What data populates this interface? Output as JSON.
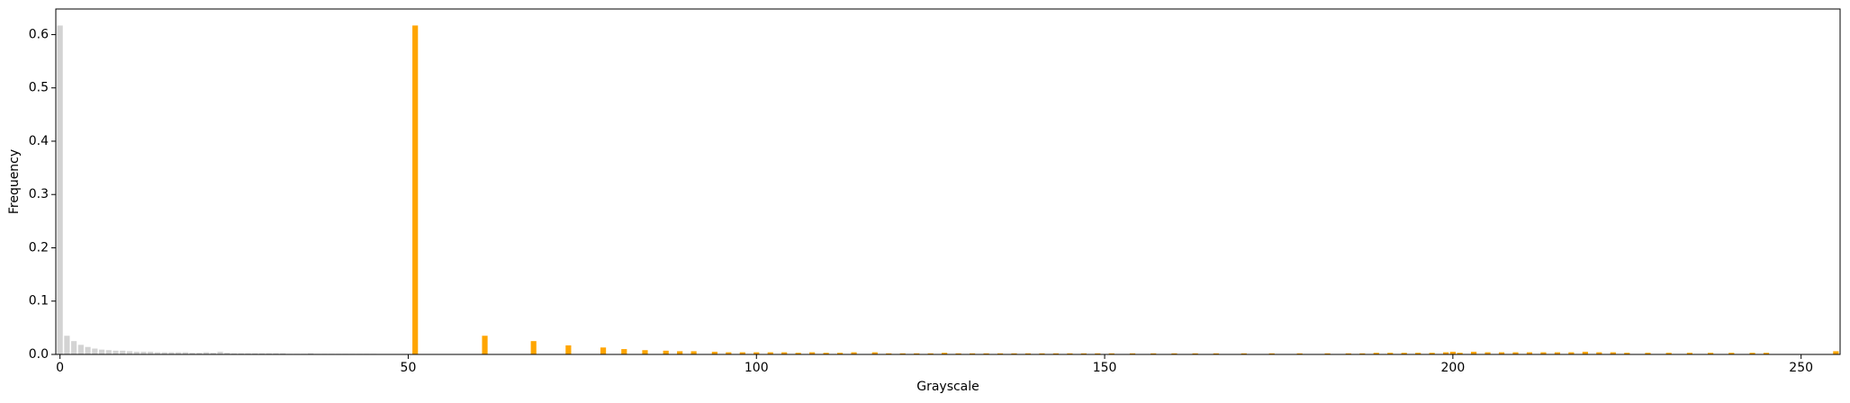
{
  "chart_data": {
    "type": "bar",
    "xlabel": "Grayscale",
    "ylabel": "Frequency",
    "xlim": [
      -0.6,
      255.6
    ],
    "ylim": [
      0,
      0.648
    ],
    "xticks": [
      0,
      50,
      100,
      150,
      200,
      250
    ],
    "yticks": [
      {
        "value": 0,
        "label": "0.0"
      },
      0.1,
      0.2,
      0.3,
      0.4,
      0.5,
      0.6
    ],
    "grid": false,
    "series": [
      {
        "color": "#d3d3d3",
        "x": [
          0,
          1,
          2,
          3,
          4,
          5,
          6,
          7,
          8,
          9,
          10,
          11,
          12,
          13,
          14,
          15,
          16,
          17,
          18,
          19,
          20,
          21,
          22,
          23,
          24,
          25,
          26,
          27,
          28,
          29,
          30,
          31,
          32,
          33,
          34,
          35,
          36,
          37,
          38,
          39,
          40,
          41,
          42,
          43,
          44,
          45
        ],
        "values": [
          0.617,
          0.035,
          0.025,
          0.018,
          0.014,
          0.011,
          0.009,
          0.008,
          0.007,
          0.007,
          0.006,
          0.005,
          0.005,
          0.005,
          0.004,
          0.004,
          0.004,
          0.004,
          0.004,
          0.003,
          0.003,
          0.004,
          0.003,
          0.005,
          0.003,
          0.002,
          0.002,
          0.002,
          0.002,
          0.002,
          0.002,
          0.002,
          0.002,
          0.001,
          0.001,
          0.001,
          0.002,
          0.001,
          0.001,
          0.001,
          0.001,
          0.001,
          0.001,
          0.001,
          0.001,
          0.001
        ]
      },
      {
        "color": "#ffa500",
        "x": [
          51,
          61,
          68,
          73,
          78,
          81,
          84,
          87,
          89,
          91,
          94,
          96,
          98,
          100,
          102,
          104,
          106,
          108,
          110,
          112,
          114,
          117,
          119,
          121,
          123,
          125,
          127,
          129,
          131,
          133,
          135,
          137,
          139,
          141,
          143,
          145,
          147,
          149,
          151,
          154,
          157,
          160,
          163,
          166,
          170,
          174,
          178,
          182,
          185,
          187,
          189,
          191,
          193,
          195,
          197,
          199,
          200,
          201,
          203,
          205,
          207,
          209,
          211,
          213,
          215,
          217,
          219,
          221,
          223,
          225,
          228,
          231,
          234,
          237,
          240,
          243,
          245,
          255
        ],
        "values": [
          0.617,
          0.035,
          0.025,
          0.017,
          0.013,
          0.01,
          0.008,
          0.007,
          0.006,
          0.006,
          0.005,
          0.004,
          0.004,
          0.004,
          0.004,
          0.004,
          0.003,
          0.004,
          0.003,
          0.003,
          0.004,
          0.004,
          0.002,
          0.002,
          0.002,
          0.002,
          0.003,
          0.002,
          0.002,
          0.002,
          0.002,
          0.002,
          0.002,
          0.002,
          0.002,
          0.002,
          0.002,
          0.002,
          0.002,
          0.002,
          0.002,
          0.002,
          0.002,
          0.002,
          0.002,
          0.002,
          0.002,
          0.002,
          0.002,
          0.002,
          0.003,
          0.003,
          0.003,
          0.003,
          0.003,
          0.004,
          0.005,
          0.003,
          0.005,
          0.004,
          0.004,
          0.004,
          0.004,
          0.004,
          0.004,
          0.004,
          0.005,
          0.004,
          0.004,
          0.003,
          0.003,
          0.003,
          0.003,
          0.003,
          0.003,
          0.003,
          0.003,
          0.006
        ]
      }
    ]
  }
}
